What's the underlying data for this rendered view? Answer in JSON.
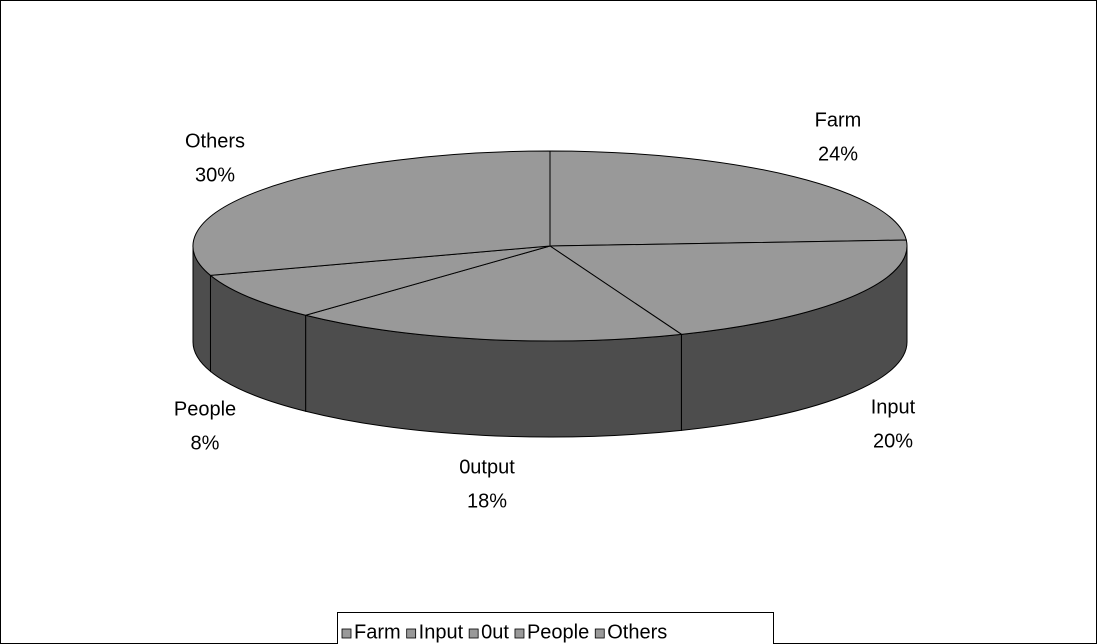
{
  "chart_data": {
    "type": "pie3d",
    "categories": [
      "Farm",
      "Input",
      "0utput",
      "People",
      "Others"
    ],
    "values": [
      24,
      20,
      18,
      8,
      30
    ],
    "value_labels": [
      "24%",
      "20%",
      "18%",
      "8%",
      "30%"
    ],
    "legend": [
      "Farm",
      "Input",
      "0ut",
      "People",
      "Others"
    ],
    "color": "#999999",
    "side_color": "#4d4d4d"
  }
}
